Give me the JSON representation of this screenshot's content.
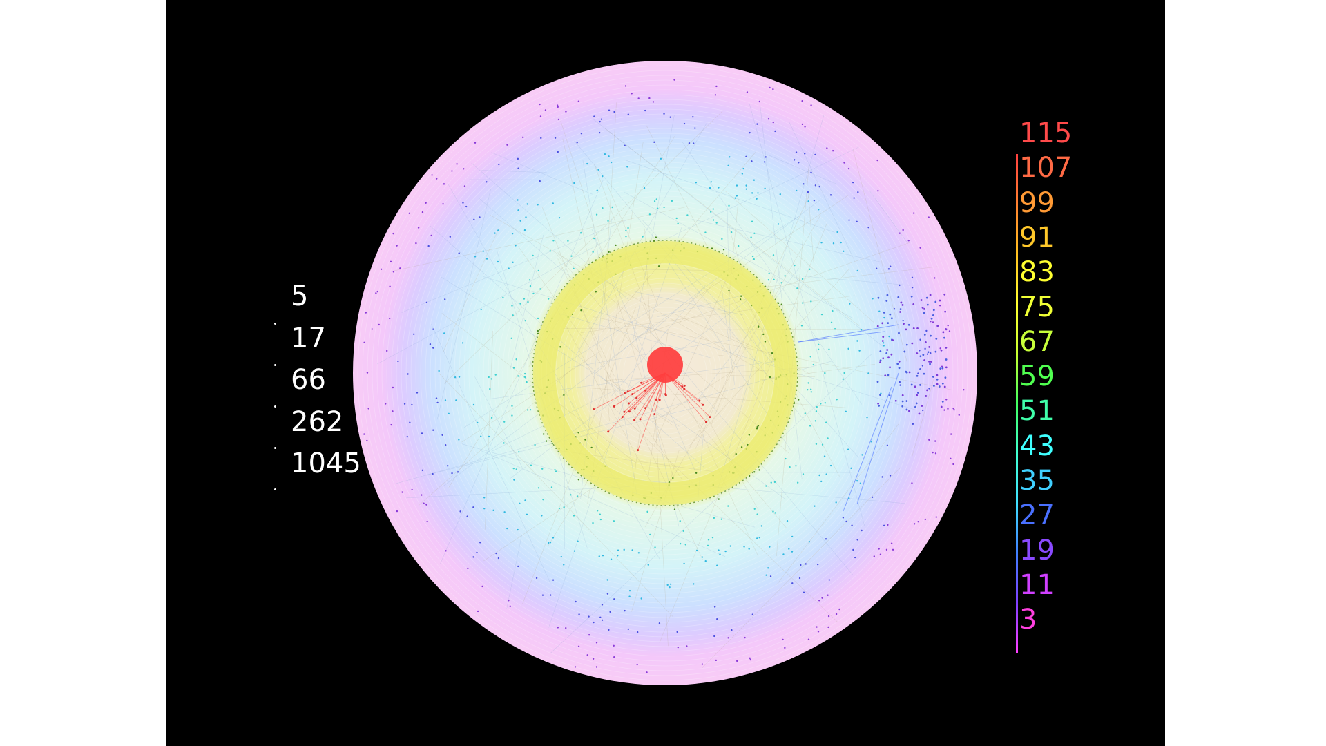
{
  "size_legend": {
    "labels": [
      "5",
      "17",
      "66",
      "262",
      "1045"
    ]
  },
  "color_legend": {
    "labels": [
      "115",
      "107",
      "99",
      "91",
      "83",
      "75",
      "67",
      "59",
      "51",
      "43",
      "35",
      "27",
      "19",
      "11",
      "3"
    ],
    "colors": [
      "#ff4a4a",
      "#ff6a45",
      "#ff9a35",
      "#ffc82a",
      "#ffff30",
      "#f0ff35",
      "#c8ff3a",
      "#50ff50",
      "#40ffaa",
      "#40ffff",
      "#40d0ff",
      "#4a70ff",
      "#8a4aff",
      "#d040ff",
      "#ff40e0"
    ]
  },
  "colors": {
    "background": "#000000",
    "outer_ring": "#f8c8f8",
    "purple_ring": "#d8c8ff",
    "blue_ring": "#c8e8ff",
    "cyan_ring": "#c8f8f0",
    "yellow_band": "#f0f090",
    "inner_core": "#f0e8d0",
    "center_node": "#ff4040"
  }
}
